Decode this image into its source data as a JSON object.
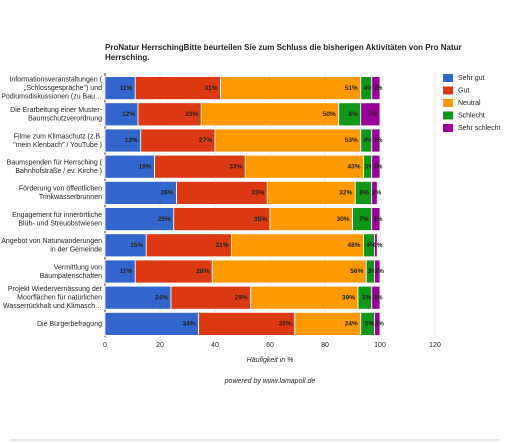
{
  "chart_data": {
    "type": "stacked-bar-horizontal",
    "title": "ProNatur HerrschingBitte beurteilen Sie zum Schluss die bisherigen Aktivitäten von Pro Natur Herrsching.",
    "categories": [
      "Informationsveranstaltungen (\n„Schlossgespräche\") und\nPodiumsdiskussionen (zu Bau…",
      "Die Erarbeitung einer Muster-\nBaumschutzverordnung",
      "Filme zum Klimaschutz (z.B.\n\"mein Klenbach\" / YouTube )",
      "Baumspenden für Herrsching (\nBahnhofstraße / ev. Kirche )",
      "Förderung von öffentlichen\nTrinkwasserbrunnen",
      "Engagement für innerörtliche\nBlüh- und Streuobstwiesen",
      "Angebot von Naturwanderungen\nin der Gemeinde",
      "Vermittlung von\nBaumpatenschaften",
      "Projekt Wiedervernässung der\nMoorflächen für natürlichen\nWasserrückhalt und Klimasch…",
      "Die Bürgerbefragung"
    ],
    "series": [
      {
        "name": "Sehr gut",
        "color": "#3366cc",
        "values": [
          11,
          12,
          13,
          18,
          26,
          25,
          15,
          11,
          24,
          34
        ],
        "value_labels": [
          "11%",
          "12%",
          "13%",
          "18%",
          "26%",
          "25%",
          "15%",
          "11%",
          "24%",
          "34%"
        ]
      },
      {
        "name": "Gut",
        "color": "#dc3912",
        "values": [
          31,
          23,
          27,
          33,
          33,
          35,
          31,
          28,
          29,
          35
        ],
        "value_labels": [
          "31%",
          "23%",
          "27%",
          "33%",
          "33%",
          "35%",
          "31%",
          "28%",
          "29%",
          "35%"
        ]
      },
      {
        "name": "Neutral",
        "color": "#ff9900",
        "values": [
          51,
          50,
          53,
          43,
          32,
          30,
          48,
          56,
          39,
          24
        ],
        "value_labels": [
          "51%",
          "50%",
          "53%",
          "43%",
          "32%",
          "30%",
          "48%",
          "56%",
          "39%",
          "24%"
        ]
      },
      {
        "name": "Schlecht",
        "color": "#109618",
        "values": [
          4,
          8,
          4,
          3,
          6,
          7,
          4,
          3,
          5,
          5
        ],
        "value_labels": [
          "4%",
          "8%",
          "4%",
          "3%",
          "6%",
          "7%",
          "4%",
          "3%",
          "5%",
          "5%"
        ]
      },
      {
        "name": "Sehr schlecht",
        "color": "#990099",
        "values": [
          3,
          7,
          3,
          3,
          2,
          3,
          1,
          2,
          3,
          2
        ],
        "value_labels": [
          "3%",
          "7%",
          "3%",
          "3%",
          "2%",
          "3%",
          "1%",
          "2%",
          "3%",
          "2%"
        ]
      }
    ],
    "xlim": [
      0,
      120
    ],
    "xticks": [
      0,
      20,
      40,
      60,
      80,
      100,
      120
    ],
    "xlabel": "Häufigkeit in %",
    "footer": "powered by www.lamapoll.de",
    "legend": "right"
  }
}
